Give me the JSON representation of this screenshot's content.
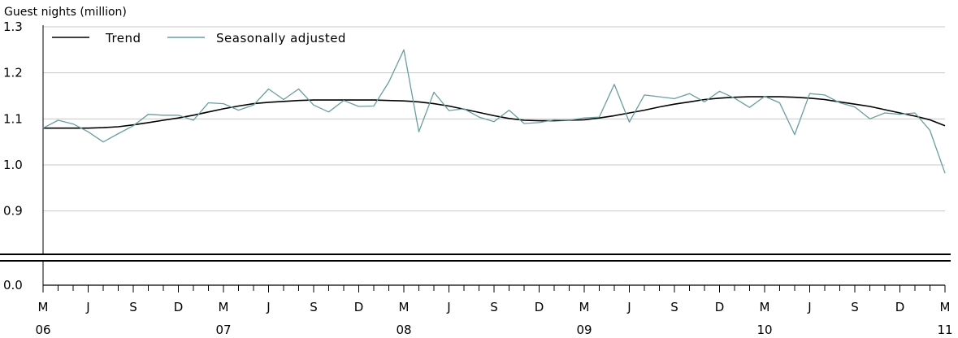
{
  "chart_data": {
    "type": "line",
    "ylabel": "Guest nights (million)",
    "title": "",
    "xlabel": "",
    "ylim": [
      0.85,
      1.3
    ],
    "y_ticks": [
      "1.3",
      "1.2",
      "1.1",
      "1.0",
      "0.9"
    ],
    "y_zero_label": "0.0",
    "axis_break": true,
    "grid": true,
    "legend_position": "top-left",
    "x_month_labels": [
      "M",
      "J",
      "S",
      "D",
      "M",
      "J",
      "S",
      "D",
      "M",
      "J",
      "S",
      "D",
      "M",
      "J",
      "S",
      "D",
      "M",
      "J",
      "S",
      "D",
      "M"
    ],
    "x_year_labels": [
      "06",
      "07",
      "08",
      "09",
      "10",
      "11"
    ],
    "x_start": "2006-03",
    "x_end": "2011-03",
    "series": [
      {
        "name": "Trend",
        "color": "#000000",
        "values": [
          1.08,
          1.08,
          1.08,
          1.08,
          1.081,
          1.083,
          1.087,
          1.092,
          1.097,
          1.102,
          1.108,
          1.115,
          1.122,
          1.128,
          1.133,
          1.136,
          1.138,
          1.14,
          1.141,
          1.141,
          1.141,
          1.141,
          1.141,
          1.14,
          1.139,
          1.137,
          1.133,
          1.128,
          1.121,
          1.114,
          1.107,
          1.101,
          1.097,
          1.096,
          1.096,
          1.097,
          1.098,
          1.102,
          1.107,
          1.113,
          1.119,
          1.126,
          1.132,
          1.137,
          1.142,
          1.145,
          1.147,
          1.148,
          1.148,
          1.148,
          1.147,
          1.145,
          1.142,
          1.137,
          1.132,
          1.127,
          1.12,
          1.113,
          1.106,
          1.098,
          1.085
        ]
      },
      {
        "name": "Seasonally adjusted",
        "color": "#6a9e9e",
        "values": [
          1.08,
          1.097,
          1.089,
          1.072,
          1.05,
          1.068,
          1.085,
          1.11,
          1.108,
          1.108,
          1.097,
          1.135,
          1.133,
          1.119,
          1.13,
          1.165,
          1.142,
          1.165,
          1.13,
          1.115,
          1.14,
          1.127,
          1.128,
          1.18,
          1.25,
          1.072,
          1.158,
          1.118,
          1.122,
          1.104,
          1.094,
          1.119,
          1.09,
          1.092,
          1.098,
          1.097,
          1.102,
          1.104,
          1.175,
          1.093,
          1.152,
          1.148,
          1.144,
          1.155,
          1.137,
          1.16,
          1.145,
          1.125,
          1.149,
          1.135,
          1.066,
          1.155,
          1.152,
          1.135,
          1.126,
          1.1,
          1.113,
          1.11,
          1.113,
          1.075,
          0.982
        ]
      }
    ]
  }
}
